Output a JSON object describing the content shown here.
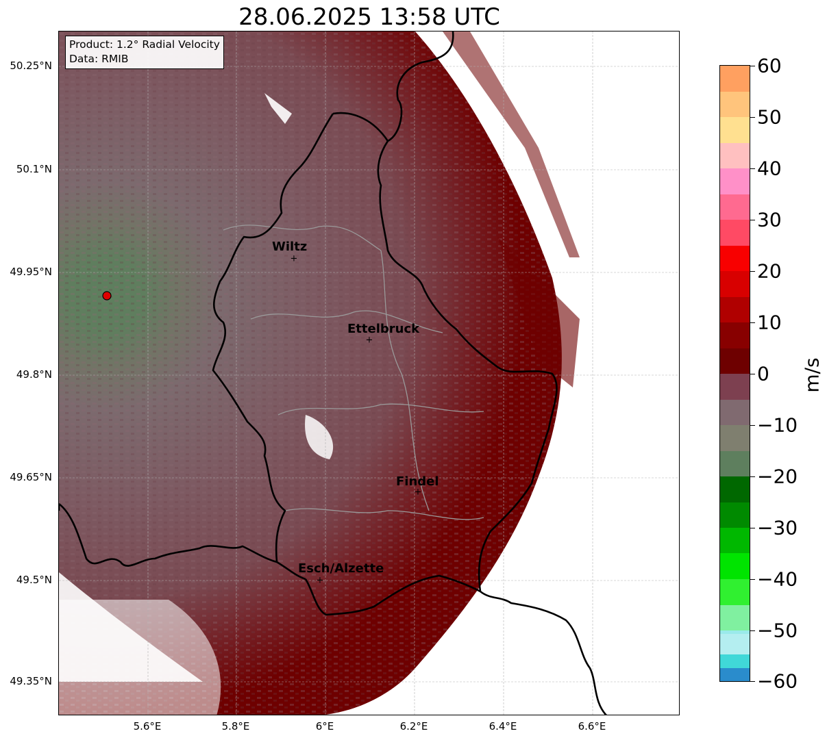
{
  "title": "28.06.2025 13:58 UTC",
  "info_box": {
    "product": "Product: 1.2° Radial Velocity",
    "data_source": "Data: RMIB"
  },
  "latitude_labels": [
    "50.25°N",
    "50.1°N",
    "49.95°N",
    "49.8°N",
    "49.65°N",
    "49.5°N",
    "49.35°N"
  ],
  "longitude_labels": [
    "5.6°E",
    "5.8°E",
    "6°E",
    "6.2°E",
    "6.4°E",
    "6.6°E"
  ],
  "cities": [
    {
      "name": "Wiltz"
    },
    {
      "name": "Ettelbruck"
    },
    {
      "name": "Findel"
    },
    {
      "name": "Esch/Alzette"
    }
  ],
  "radar_site_marker": "red-dot",
  "colorbar": {
    "unit": "m/s",
    "min": -60,
    "max": 60,
    "ticks": [
      "60",
      "50",
      "40",
      "30",
      "20",
      "10",
      "0",
      "−10",
      "−20",
      "−30",
      "−40",
      "−50",
      "−60"
    ]
  },
  "colors": {
    "receding_dark": "#6e0000",
    "receding_mauve": "#7d4d55",
    "near_zero_gray": "#7f6b70",
    "approaching_green": "#5e7f5e",
    "border": "#000000"
  }
}
